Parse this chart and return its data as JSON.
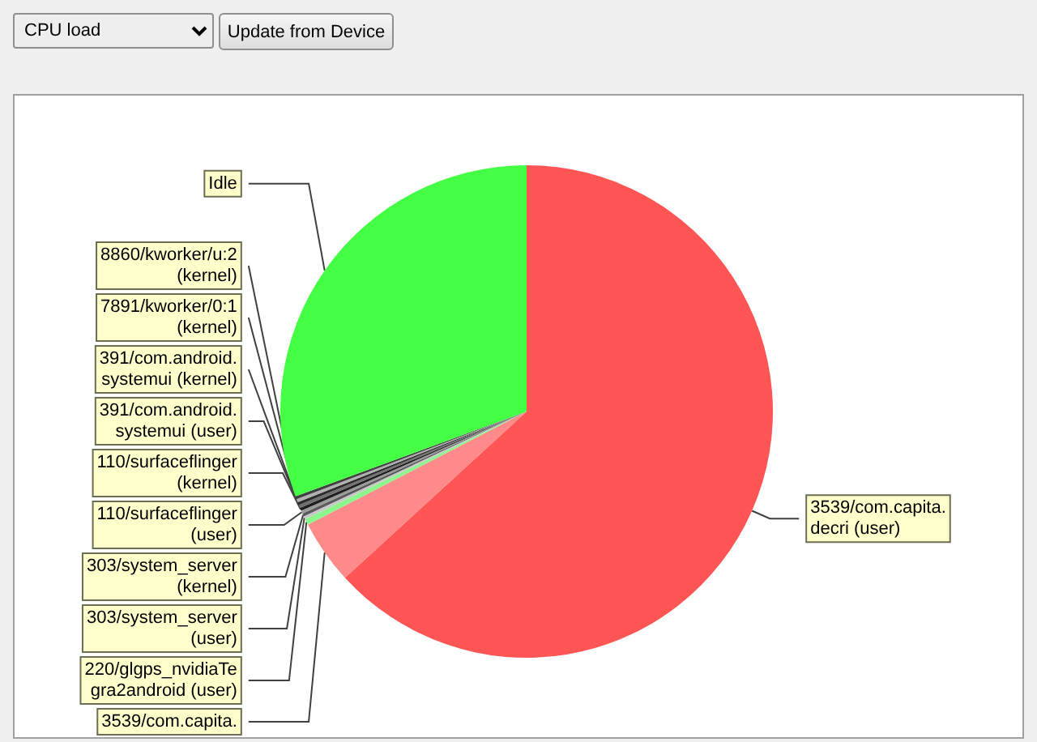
{
  "chart_data": {
    "type": "pie",
    "title": "CPU load",
    "annotations": [
      "Update from Device"
    ],
    "categories": [
      "3539/com.capita.decri (user)",
      "3539/com.capita.",
      "220/glgps_nvidiaTegra2android (user)",
      "303/system_server (user)",
      "303/system_server (kernel)",
      "110/surfaceflinger (user)",
      "110/surfaceflinger (kernel)",
      "391/com.android.systemui (user)",
      "391/com.android.systemui (kernel)",
      "7891/kworker/0:1 (kernel)",
      "8860/kworker/u:2 (kernel)",
      "Idle"
    ],
    "values": [
      63.2,
      4.2,
      0.4,
      0.2,
      0.2,
      0.2,
      0.2,
      0.2,
      0.2,
      0.2,
      0.2,
      30.6
    ],
    "colors": [
      "#ff5555",
      "#ff8a8a",
      "#8cf58c",
      "#c8c8c8",
      "#5a5a5a",
      "#9a9a9a",
      "#1e1e1e",
      "#707070",
      "#2d2d2d",
      "#b0b0b0",
      "#404040",
      "#44ff44"
    ]
  }
}
